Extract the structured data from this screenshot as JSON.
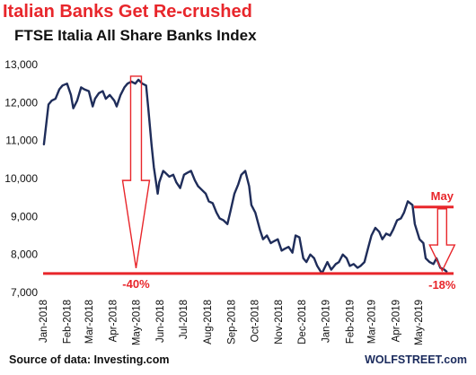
{
  "title": "Italian Banks Get Re-crushed",
  "subtitle": "FTSE Italia All Share Banks Index",
  "source": "Source of data: Investing.com",
  "watermark": "WOLFSTREET.com",
  "colors": {
    "series": "#1f2d5a",
    "accent": "#e8262b",
    "gridline": "#d0d0d0"
  },
  "chart_data": {
    "type": "line",
    "title": "FTSE Italia All Share Banks Index",
    "xlabel": "",
    "ylabel": "",
    "ylim": [
      7000,
      13000
    ],
    "yticks": [
      7000,
      8000,
      9000,
      10000,
      11000,
      12000,
      13000
    ],
    "ytick_labels": [
      "7,000",
      "8,000",
      "9,000",
      "10,000",
      "11,000",
      "12,000",
      "13,000"
    ],
    "xlim": [
      "2018-01-01",
      "2019-06-15"
    ],
    "xtick_labels": [
      "Jan-2018",
      "Feb-2018",
      "Mar-2018",
      "Apr-2018",
      "May-2018",
      "Jun-2018",
      "Jul-2018",
      "Aug-2018",
      "Sep-2018",
      "Oct-2018",
      "Nov-2018",
      "Dec-2018",
      "Jan-2019",
      "Feb-2019",
      "Mar-2019",
      "Apr-2019",
      "May-2019"
    ],
    "xtick_dates": [
      "2018-01-01",
      "2018-02-01",
      "2018-03-01",
      "2018-04-01",
      "2018-05-01",
      "2018-06-01",
      "2018-07-01",
      "2018-08-01",
      "2018-09-01",
      "2018-10-01",
      "2018-11-01",
      "2018-12-01",
      "2019-01-01",
      "2019-02-01",
      "2019-03-01",
      "2019-04-01",
      "2019-05-01"
    ],
    "grid": false,
    "series": [
      {
        "color": "#1f2d5a",
        "x": [
          "2018-01-02",
          "2018-01-04",
          "2018-01-08",
          "2018-01-12",
          "2018-01-17",
          "2018-01-22",
          "2018-01-26",
          "2018-02-01",
          "2018-02-06",
          "2018-02-09",
          "2018-02-14",
          "2018-02-19",
          "2018-02-23",
          "2018-03-01",
          "2018-03-06",
          "2018-03-09",
          "2018-03-14",
          "2018-03-19",
          "2018-03-23",
          "2018-03-28",
          "2018-04-03",
          "2018-04-06",
          "2018-04-11",
          "2018-04-16",
          "2018-04-20",
          "2018-04-25",
          "2018-04-30",
          "2018-05-04",
          "2018-05-09",
          "2018-05-14",
          "2018-05-17",
          "2018-05-21",
          "2018-05-24",
          "2018-05-29",
          "2018-05-31",
          "2018-06-05",
          "2018-06-08",
          "2018-06-13",
          "2018-06-18",
          "2018-06-22",
          "2018-06-27",
          "2018-07-02",
          "2018-07-06",
          "2018-07-11",
          "2018-07-16",
          "2018-07-20",
          "2018-07-25",
          "2018-07-30",
          "2018-08-03",
          "2018-08-08",
          "2018-08-13",
          "2018-08-17",
          "2018-08-22",
          "2018-08-27",
          "2018-08-31",
          "2018-09-05",
          "2018-09-10",
          "2018-09-14",
          "2018-09-19",
          "2018-09-24",
          "2018-09-27",
          "2018-10-02",
          "2018-10-08",
          "2018-10-12",
          "2018-10-17",
          "2018-10-22",
          "2018-10-26",
          "2018-10-31",
          "2018-11-05",
          "2018-11-09",
          "2018-11-14",
          "2018-11-19",
          "2018-11-23",
          "2018-11-28",
          "2018-12-03",
          "2018-12-07",
          "2018-12-12",
          "2018-12-17",
          "2018-12-21",
          "2018-12-27",
          "2019-01-03",
          "2019-01-08",
          "2019-01-14",
          "2019-01-18",
          "2019-01-23",
          "2019-01-28",
          "2019-02-01",
          "2019-02-06",
          "2019-02-11",
          "2019-02-15",
          "2019-02-20",
          "2019-02-25",
          "2019-03-01",
          "2019-03-06",
          "2019-03-11",
          "2019-03-15",
          "2019-03-20",
          "2019-03-25",
          "2019-03-29",
          "2019-04-03",
          "2019-04-08",
          "2019-04-12",
          "2019-04-17",
          "2019-04-23",
          "2019-04-26",
          "2019-05-02",
          "2019-05-07",
          "2019-05-10",
          "2019-05-15",
          "2019-05-20",
          "2019-05-24",
          "2019-05-29",
          "2019-06-03",
          "2019-06-06"
        ],
        "values": [
          10900,
          11250,
          11950,
          12050,
          12100,
          12350,
          12450,
          12500,
          12200,
          11850,
          12050,
          12400,
          12350,
          12300,
          11900,
          12100,
          12250,
          12300,
          12100,
          12200,
          12050,
          11900,
          12200,
          12400,
          12500,
          12550,
          12500,
          12600,
          12500,
          12450,
          11800,
          10900,
          10300,
          9600,
          9900,
          10200,
          10150,
          10050,
          10100,
          9900,
          9750,
          10100,
          10150,
          10200,
          9950,
          9800,
          9700,
          9600,
          9400,
          9350,
          9100,
          8950,
          8900,
          8800,
          9150,
          9600,
          9850,
          10100,
          10200,
          9800,
          9300,
          9100,
          8650,
          8400,
          8500,
          8300,
          8350,
          8400,
          8100,
          8150,
          8200,
          8050,
          8500,
          8450,
          7900,
          7800,
          8000,
          7900,
          7700,
          7500,
          7800,
          7600,
          7750,
          7800,
          8000,
          7900,
          7700,
          7750,
          7650,
          7700,
          7800,
          8200,
          8500,
          8700,
          8600,
          8400,
          8550,
          8500,
          8650,
          8900,
          8950,
          9100,
          9400,
          9300,
          8800,
          8400,
          8300,
          7900,
          7800,
          7750,
          7900,
          7650,
          7600,
          7550
        ]
      }
    ],
    "annotations": {
      "low_line_value": 7500,
      "may_high_value": 9250,
      "peak_value": 12600,
      "high_date": "2019-04-23",
      "high_line_start": "2019-04-25",
      "may_label": "May",
      "pct_2018": "-40%",
      "pct_2019": "-18%"
    }
  }
}
